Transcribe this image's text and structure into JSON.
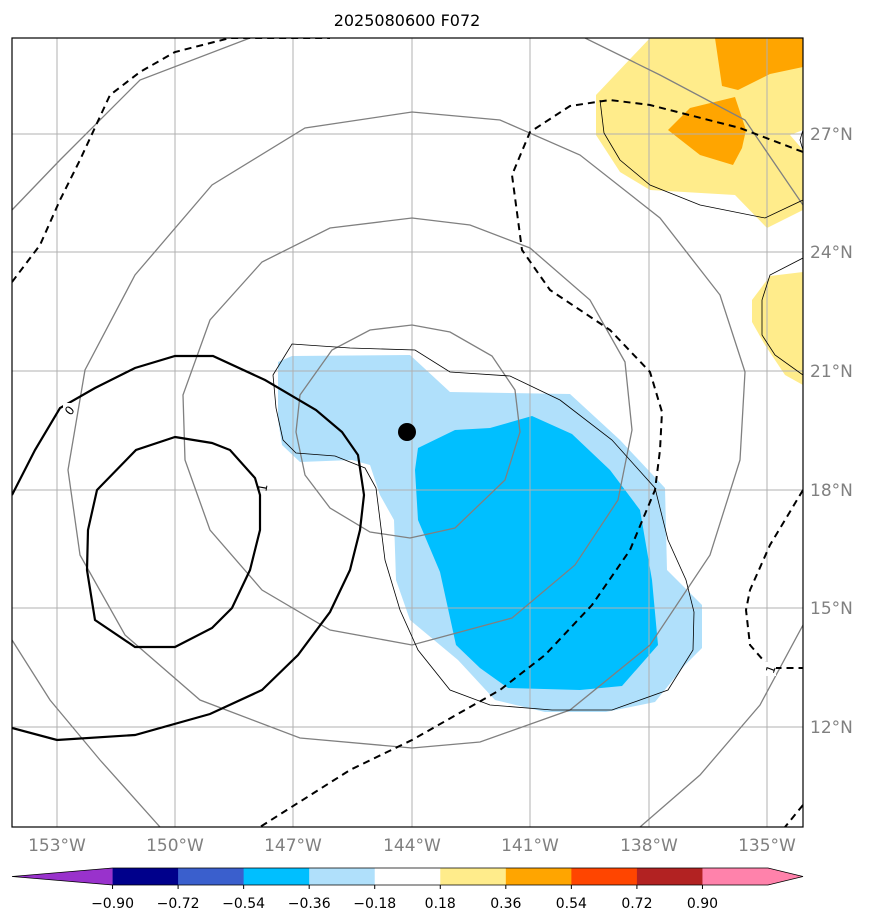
{
  "title": "2025080600 F072",
  "map": {
    "longitude_labels": [
      "153°W",
      "150°W",
      "147°W",
      "144°W",
      "141°W",
      "138°W",
      "135°W"
    ],
    "latitude_labels": [
      "27°N",
      "24°N",
      "21°N",
      "18°N",
      "15°N",
      "12°N"
    ],
    "contour_labels": [
      "0",
      "1",
      "1"
    ],
    "storm_center": {
      "lon": -144.1,
      "lat": 19.4
    },
    "colors": {
      "gridline": "#b0b0b0",
      "concentric_contours": "#808080",
      "fill_light_blue": "#b0e0fb",
      "fill_blue": "#00bfff",
      "fill_yellow": "#ffec8b",
      "fill_orange": "#ffa500"
    }
  },
  "colorbar": {
    "tick_labels": [
      "−0.90",
      "−0.72",
      "−0.54",
      "−0.36",
      "−0.18",
      "0.18",
      "0.36",
      "0.54",
      "0.72",
      "0.90"
    ],
    "colors": [
      "#9932cc",
      "#00008b",
      "#3a5fcd",
      "#00bfff",
      "#b0e0fb",
      "#ffffff",
      "#ffec8b",
      "#ffa500",
      "#ff4500",
      "#b22222",
      "#ff82ab",
      "#ff82ab"
    ],
    "extend": "both"
  }
}
